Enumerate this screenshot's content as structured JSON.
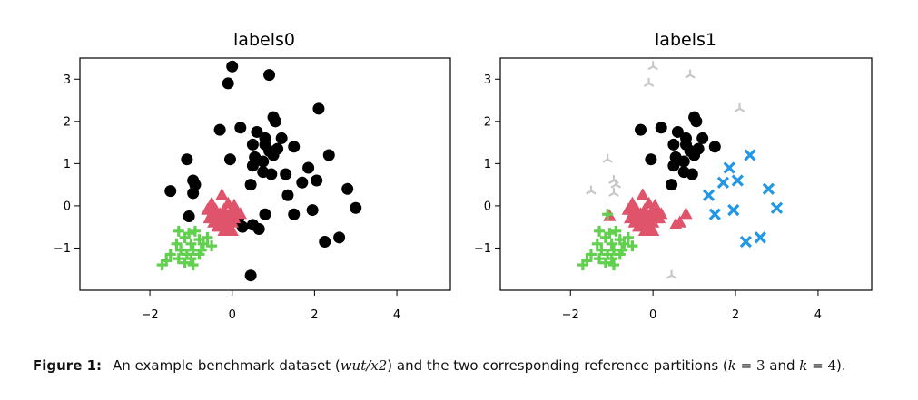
{
  "caption": {
    "label": "Figure 1:",
    "text_before": "An example benchmark dataset (",
    "dataset": "wut/x2",
    "text_middle": ") and the two corresponding reference partitions (",
    "k_first": "k",
    "eq_first": " = 3",
    "and_text": " and ",
    "k_second": "k",
    "eq_second": " = 4",
    "text_after": ")."
  },
  "chart_data": [
    {
      "type": "scatter",
      "title": "labels0",
      "xlabel": "",
      "ylabel": "",
      "xlim": [
        -3.7,
        5.3
      ],
      "ylim": [
        -2.0,
        3.5
      ],
      "xticks": [
        -2,
        0,
        2,
        4
      ],
      "yticks": [
        -1,
        0,
        1,
        2,
        3
      ],
      "tick_labels_x": [
        "−2",
        "0",
        "2",
        "4"
      ],
      "tick_labels_y": [
        "−1",
        "0",
        "1",
        "2",
        "3"
      ],
      "grid": false,
      "series": [
        {
          "marker": "circle",
          "color": "#000000",
          "points": [
            [
              0.0,
              3.3
            ],
            [
              -0.1,
              2.9
            ],
            [
              0.9,
              3.1
            ],
            [
              1.0,
              2.1
            ],
            [
              1.05,
              2.0
            ],
            [
              2.1,
              2.3
            ],
            [
              -0.3,
              1.8
            ],
            [
              0.2,
              1.85
            ],
            [
              0.6,
              1.75
            ],
            [
              0.8,
              1.6
            ],
            [
              1.2,
              1.6
            ],
            [
              0.5,
              1.45
            ],
            [
              0.8,
              1.45
            ],
            [
              1.5,
              1.4
            ],
            [
              1.1,
              1.35
            ],
            [
              0.9,
              1.3
            ],
            [
              1.0,
              1.2
            ],
            [
              2.35,
              1.2
            ],
            [
              0.55,
              1.15
            ],
            [
              0.75,
              1.05
            ],
            [
              -0.05,
              1.1
            ],
            [
              -1.1,
              1.1
            ],
            [
              0.5,
              0.95
            ],
            [
              1.85,
              0.9
            ],
            [
              0.75,
              0.8
            ],
            [
              0.95,
              0.75
            ],
            [
              1.3,
              0.75
            ],
            [
              2.05,
              0.6
            ],
            [
              -0.95,
              0.6
            ],
            [
              -0.9,
              0.5
            ],
            [
              1.7,
              0.55
            ],
            [
              0.45,
              0.5
            ],
            [
              -1.5,
              0.35
            ],
            [
              2.8,
              0.4
            ],
            [
              1.35,
              0.25
            ],
            [
              -0.95,
              0.3
            ],
            [
              3.0,
              -0.05
            ],
            [
              1.95,
              -0.1
            ],
            [
              1.5,
              -0.2
            ],
            [
              0.8,
              -0.2
            ],
            [
              -1.05,
              -0.25
            ],
            [
              0.15,
              -0.3
            ],
            [
              0.25,
              -0.5
            ],
            [
              0.5,
              -0.45
            ],
            [
              0.65,
              -0.55
            ],
            [
              2.25,
              -0.85
            ],
            [
              2.6,
              -0.75
            ],
            [
              0.45,
              -1.65
            ]
          ]
        },
        {
          "marker": "triangle",
          "color": "#df536b",
          "points": [
            [
              -0.25,
              0.25
            ],
            [
              -0.5,
              0.05
            ],
            [
              -0.1,
              0.05
            ],
            [
              0.05,
              0.0
            ],
            [
              -0.6,
              -0.1
            ],
            [
              -0.4,
              -0.1
            ],
            [
              -0.2,
              -0.1
            ],
            [
              0.1,
              -0.1
            ],
            [
              -0.5,
              -0.2
            ],
            [
              -0.3,
              -0.2
            ],
            [
              -0.05,
              -0.2
            ],
            [
              0.2,
              -0.2
            ],
            [
              -0.55,
              -0.3
            ],
            [
              -0.35,
              -0.3
            ],
            [
              -0.15,
              -0.3
            ],
            [
              0.05,
              -0.3
            ],
            [
              -0.45,
              -0.4
            ],
            [
              -0.25,
              -0.4
            ],
            [
              0.0,
              -0.4
            ],
            [
              -0.35,
              -0.5
            ],
            [
              -0.1,
              -0.5
            ],
            [
              -0.2,
              -0.6
            ],
            [
              0.0,
              -0.6
            ]
          ]
        },
        {
          "marker": "plus",
          "color": "#61d04f",
          "points": [
            [
              -1.3,
              -0.6
            ],
            [
              -1.05,
              -0.65
            ],
            [
              -0.9,
              -0.6
            ],
            [
              -1.15,
              -0.75
            ],
            [
              -0.8,
              -0.8
            ],
            [
              -0.6,
              -0.75
            ],
            [
              -1.35,
              -0.9
            ],
            [
              -1.0,
              -0.9
            ],
            [
              -0.7,
              -0.9
            ],
            [
              -0.5,
              -0.95
            ],
            [
              -1.25,
              -1.05
            ],
            [
              -0.95,
              -1.05
            ],
            [
              -0.75,
              -1.05
            ],
            [
              -1.5,
              -1.15
            ],
            [
              -1.1,
              -1.15
            ],
            [
              -0.8,
              -1.15
            ],
            [
              -1.3,
              -1.25
            ],
            [
              -1.0,
              -1.25
            ],
            [
              -1.6,
              -1.3
            ],
            [
              -1.15,
              -1.35
            ],
            [
              -0.95,
              -1.4
            ],
            [
              -1.7,
              -1.4
            ]
          ]
        }
      ]
    },
    {
      "type": "scatter",
      "title": "labels1",
      "xlabel": "",
      "ylabel": "",
      "xlim": [
        -3.7,
        5.3
      ],
      "ylim": [
        -2.0,
        3.5
      ],
      "xticks": [
        -2,
        0,
        2,
        4
      ],
      "yticks": [
        -1,
        0,
        1,
        2,
        3
      ],
      "tick_labels_x": [
        "−2",
        "0",
        "2",
        "4"
      ],
      "tick_labels_y": [
        "−1",
        "0",
        "1",
        "2",
        "3"
      ],
      "grid": false,
      "series": [
        {
          "marker": "tri_down",
          "color": "#c8c8c8",
          "points": [
            [
              0.0,
              3.3
            ],
            [
              -0.1,
              2.9
            ],
            [
              0.9,
              3.1
            ],
            [
              2.1,
              2.3
            ],
            [
              -1.1,
              1.1
            ],
            [
              -1.5,
              0.35
            ],
            [
              -0.95,
              0.6
            ],
            [
              -0.9,
              0.5
            ],
            [
              -0.95,
              0.3
            ],
            [
              0.45,
              -1.65
            ]
          ]
        },
        {
          "marker": "circle",
          "color": "#000000",
          "points": [
            [
              1.0,
              2.1
            ],
            [
              1.05,
              2.0
            ],
            [
              -0.3,
              1.8
            ],
            [
              0.2,
              1.85
            ],
            [
              0.6,
              1.75
            ],
            [
              0.8,
              1.6
            ],
            [
              1.2,
              1.6
            ],
            [
              0.5,
              1.45
            ],
            [
              0.8,
              1.45
            ],
            [
              1.5,
              1.4
            ],
            [
              1.1,
              1.35
            ],
            [
              0.9,
              1.3
            ],
            [
              1.0,
              1.2
            ],
            [
              0.55,
              1.15
            ],
            [
              0.75,
              1.05
            ],
            [
              -0.05,
              1.1
            ],
            [
              0.5,
              0.95
            ],
            [
              0.75,
              0.8
            ],
            [
              0.95,
              0.75
            ],
            [
              0.45,
              0.5
            ]
          ]
        },
        {
          "marker": "triangle",
          "color": "#df536b",
          "points": [
            [
              -0.25,
              0.25
            ],
            [
              -0.5,
              0.05
            ],
            [
              -0.1,
              0.05
            ],
            [
              0.05,
              0.0
            ],
            [
              -0.6,
              -0.1
            ],
            [
              -0.4,
              -0.1
            ],
            [
              -0.2,
              -0.1
            ],
            [
              0.1,
              -0.1
            ],
            [
              -0.5,
              -0.2
            ],
            [
              -0.3,
              -0.2
            ],
            [
              -0.05,
              -0.2
            ],
            [
              0.2,
              -0.2
            ],
            [
              -0.55,
              -0.3
            ],
            [
              -0.35,
              -0.3
            ],
            [
              -0.15,
              -0.3
            ],
            [
              0.05,
              -0.3
            ],
            [
              -0.45,
              -0.4
            ],
            [
              -0.25,
              -0.4
            ],
            [
              0.0,
              -0.4
            ],
            [
              -0.35,
              -0.5
            ],
            [
              -0.1,
              -0.5
            ],
            [
              -0.2,
              -0.6
            ],
            [
              0.0,
              -0.6
            ],
            [
              0.8,
              -0.2
            ],
            [
              0.65,
              -0.4
            ],
            [
              0.55,
              -0.45
            ],
            [
              -1.05,
              -0.25
            ],
            [
              0.15,
              -0.3
            ]
          ]
        },
        {
          "marker": "plus",
          "color": "#61d04f",
          "points": [
            [
              -1.1,
              -0.2
            ],
            [
              -1.3,
              -0.6
            ],
            [
              -1.05,
              -0.65
            ],
            [
              -0.9,
              -0.6
            ],
            [
              -1.15,
              -0.75
            ],
            [
              -0.8,
              -0.8
            ],
            [
              -0.6,
              -0.75
            ],
            [
              -1.35,
              -0.9
            ],
            [
              -1.0,
              -0.9
            ],
            [
              -0.7,
              -0.9
            ],
            [
              -0.5,
              -0.95
            ],
            [
              -1.25,
              -1.05
            ],
            [
              -0.95,
              -1.05
            ],
            [
              -0.75,
              -1.05
            ],
            [
              -1.5,
              -1.15
            ],
            [
              -1.1,
              -1.15
            ],
            [
              -0.8,
              -1.15
            ],
            [
              -1.3,
              -1.25
            ],
            [
              -1.0,
              -1.25
            ],
            [
              -1.6,
              -1.3
            ],
            [
              -1.15,
              -1.35
            ],
            [
              -0.95,
              -1.4
            ],
            [
              -1.7,
              -1.4
            ]
          ]
        },
        {
          "marker": "x",
          "color": "#2297e6",
          "points": [
            [
              2.35,
              1.2
            ],
            [
              1.85,
              0.9
            ],
            [
              1.7,
              0.55
            ],
            [
              2.05,
              0.6
            ],
            [
              1.35,
              0.25
            ],
            [
              2.8,
              0.4
            ],
            [
              3.0,
              -0.05
            ],
            [
              1.95,
              -0.1
            ],
            [
              1.5,
              -0.2
            ],
            [
              2.25,
              -0.85
            ],
            [
              2.6,
              -0.75
            ]
          ]
        }
      ]
    }
  ]
}
